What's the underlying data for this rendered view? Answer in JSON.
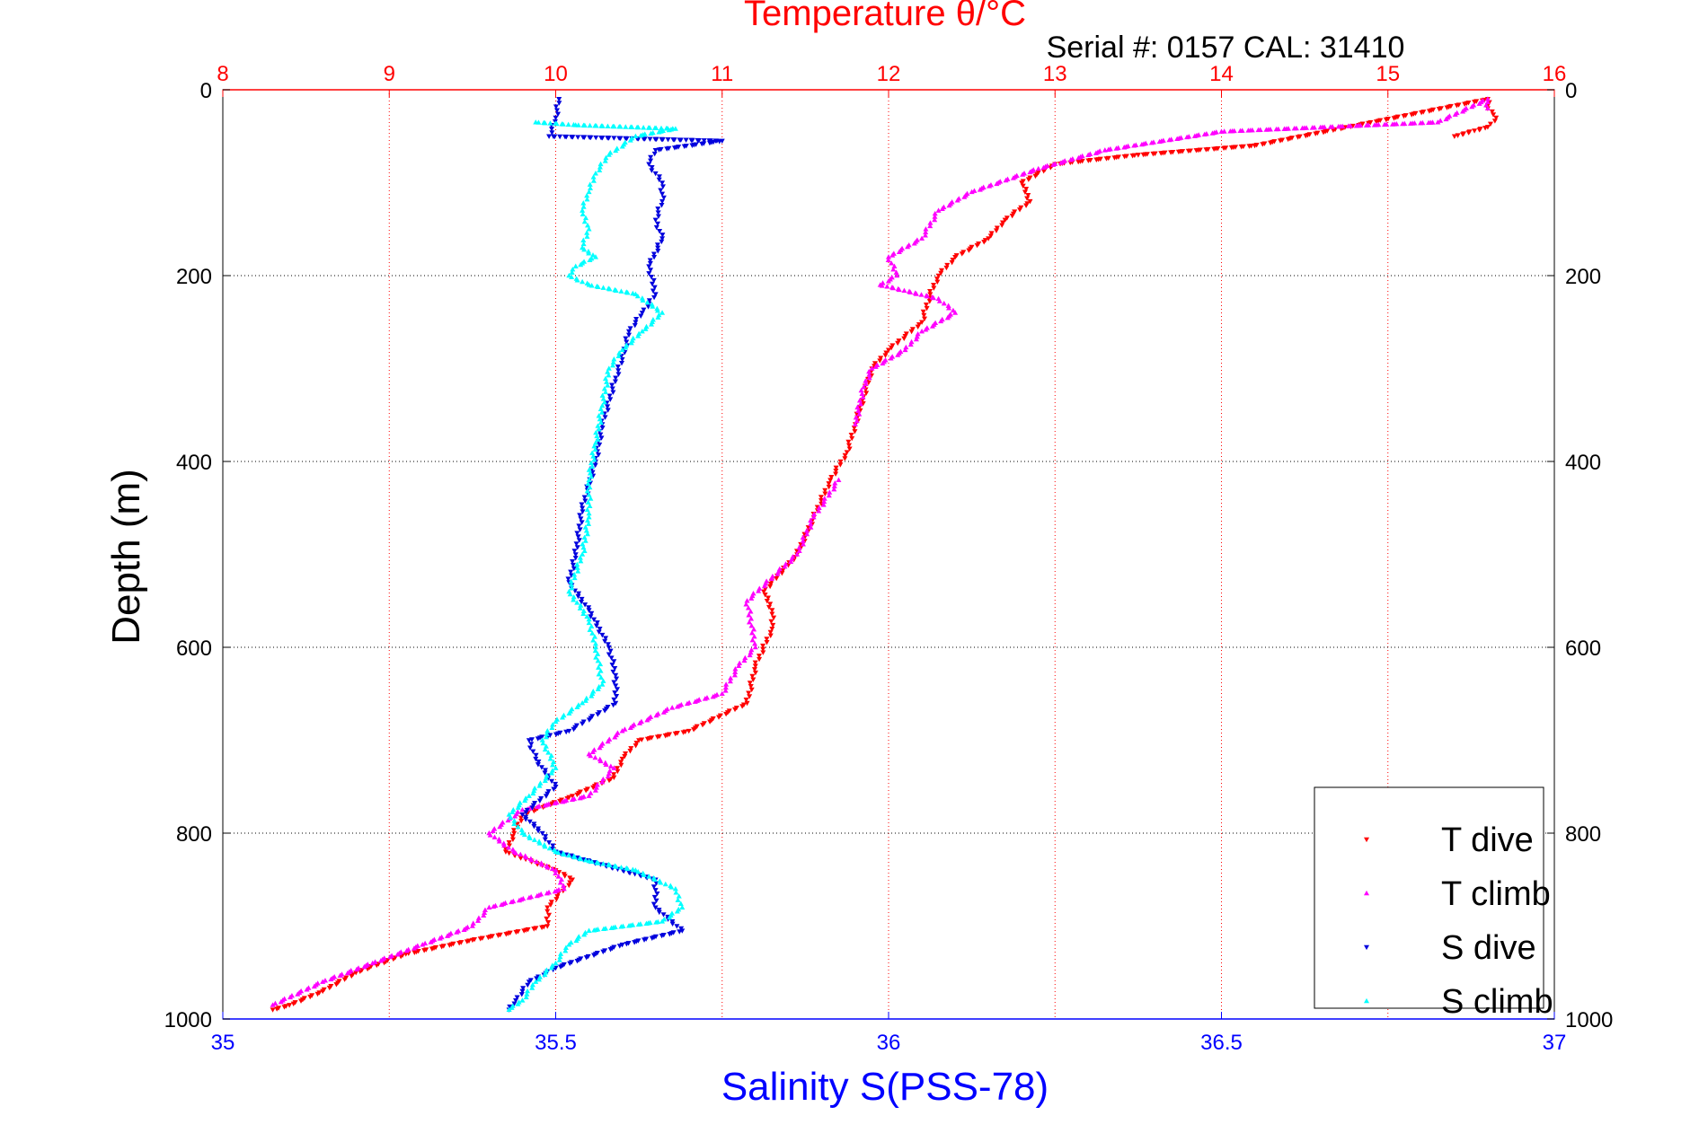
{
  "chart_data": {
    "type": "scatter",
    "title": "Temperature θ/°C",
    "subtitle": "Serial #: 0157  CAL: 31410",
    "xlabel": "Salinity S(PSS-78)",
    "ylabel": "Depth (m)",
    "x_top": {
      "label": "Temperature θ/°C",
      "range": [
        8,
        16
      ],
      "ticks": [
        "8",
        "9",
        "10",
        "11",
        "12",
        "13",
        "14",
        "15",
        "16"
      ],
      "color": "#ff0000"
    },
    "x_bottom": {
      "label": "Salinity S(PSS-78)",
      "range": [
        35,
        37
      ],
      "ticks": [
        "35",
        "35.5",
        "36",
        "36.5",
        "37"
      ],
      "color": "#0000ff"
    },
    "y": {
      "range": [
        0,
        1000
      ],
      "reversed": true,
      "ticks": [
        "0",
        "200",
        "400",
        "600",
        "800",
        "1000"
      ],
      "color": "#000000"
    },
    "grid": true,
    "legend_position": "bottom-right",
    "series": [
      {
        "name": "T dive",
        "axis": "temperature",
        "color": "#ff0000",
        "marker": "triangle-down",
        "points": [
          [
            15.4,
            50
          ],
          [
            15.6,
            40
          ],
          [
            15.65,
            30
          ],
          [
            15.6,
            20
          ],
          [
            15.6,
            10
          ],
          [
            14.2,
            60
          ],
          [
            13.5,
            70
          ],
          [
            13,
            80
          ],
          [
            12.8,
            100
          ],
          [
            12.85,
            120
          ],
          [
            12.7,
            140
          ],
          [
            12.6,
            160
          ],
          [
            12.4,
            180
          ],
          [
            12.3,
            200
          ],
          [
            12.25,
            220
          ],
          [
            12.2,
            250
          ],
          [
            12.0,
            280
          ],
          [
            11.9,
            300
          ],
          [
            11.85,
            330
          ],
          [
            11.8,
            360
          ],
          [
            11.75,
            390
          ],
          [
            11.65,
            420
          ],
          [
            11.55,
            460
          ],
          [
            11.45,
            500
          ],
          [
            11.25,
            540
          ],
          [
            11.3,
            560
          ],
          [
            11.3,
            580
          ],
          [
            11.2,
            620
          ],
          [
            11.15,
            660
          ],
          [
            10.8,
            690
          ],
          [
            10.5,
            700
          ],
          [
            10.4,
            720
          ],
          [
            10.35,
            740
          ],
          [
            10.1,
            760
          ],
          [
            9.8,
            780
          ],
          [
            9.75,
            800
          ],
          [
            9.7,
            820
          ],
          [
            10.0,
            840
          ],
          [
            10.1,
            850
          ],
          [
            9.95,
            880
          ],
          [
            9.95,
            900
          ],
          [
            9.5,
            915
          ],
          [
            9.1,
            930
          ],
          [
            8.8,
            950
          ],
          [
            8.6,
            970
          ],
          [
            8.4,
            985
          ],
          [
            8.3,
            990
          ]
        ]
      },
      {
        "name": "T climb",
        "axis": "temperature",
        "color": "#ff00ff",
        "marker": "triangle-up",
        "points": [
          [
            15.6,
            20
          ],
          [
            15.6,
            10
          ],
          [
            15.3,
            35
          ],
          [
            14.0,
            45
          ],
          [
            13.3,
            65
          ],
          [
            12.9,
            85
          ],
          [
            12.5,
            110
          ],
          [
            12.3,
            130
          ],
          [
            12.2,
            160
          ],
          [
            12.0,
            180
          ],
          [
            12.05,
            200
          ],
          [
            11.95,
            210
          ],
          [
            12.3,
            225
          ],
          [
            12.4,
            240
          ],
          [
            12.2,
            260
          ],
          [
            12.1,
            280
          ],
          [
            11.9,
            300
          ],
          [
            11.85,
            320
          ],
          [
            11.8,
            360
          ],
          [
            11.7,
            420
          ],
          [
            11.55,
            460
          ],
          [
            11.45,
            500
          ],
          [
            11.15,
            550
          ],
          [
            11.2,
            600
          ],
          [
            11.1,
            620
          ],
          [
            11.0,
            650
          ],
          [
            10.7,
            665
          ],
          [
            10.4,
            690
          ],
          [
            10.2,
            715
          ],
          [
            10.35,
            730
          ],
          [
            10.2,
            760
          ],
          [
            9.8,
            775
          ],
          [
            9.6,
            800
          ],
          [
            9.75,
            820
          ],
          [
            10.0,
            840
          ],
          [
            10.05,
            860
          ],
          [
            9.6,
            880
          ],
          [
            9.5,
            900
          ],
          [
            9.2,
            920
          ],
          [
            8.9,
            940
          ],
          [
            8.6,
            960
          ],
          [
            8.3,
            985
          ]
        ]
      },
      {
        "name": "S dive",
        "axis": "salinity",
        "color": "#0000dd",
        "marker": "triangle-down",
        "points": [
          [
            35.505,
            10
          ],
          [
            35.5,
            30
          ],
          [
            35.49,
            50
          ],
          [
            35.75,
            55
          ],
          [
            35.65,
            65
          ],
          [
            35.64,
            80
          ],
          [
            35.66,
            100
          ],
          [
            35.66,
            120
          ],
          [
            35.65,
            140
          ],
          [
            35.66,
            160
          ],
          [
            35.64,
            190
          ],
          [
            35.65,
            220
          ],
          [
            35.63,
            240
          ],
          [
            35.61,
            260
          ],
          [
            35.6,
            290
          ],
          [
            35.59,
            310
          ],
          [
            35.57,
            360
          ],
          [
            35.56,
            400
          ],
          [
            35.54,
            450
          ],
          [
            35.53,
            500
          ],
          [
            35.52,
            530
          ],
          [
            35.55,
            560
          ],
          [
            35.58,
            600
          ],
          [
            35.59,
            630
          ],
          [
            35.59,
            660
          ],
          [
            35.52,
            690
          ],
          [
            35.46,
            700
          ],
          [
            35.47,
            720
          ],
          [
            35.5,
            750
          ],
          [
            35.45,
            780
          ],
          [
            35.48,
            800
          ],
          [
            35.5,
            820
          ],
          [
            35.65,
            850
          ],
          [
            35.65,
            880
          ],
          [
            35.69,
            905
          ],
          [
            35.6,
            920
          ],
          [
            35.5,
            945
          ],
          [
            35.46,
            960
          ],
          [
            35.44,
            980
          ],
          [
            35.43,
            990
          ]
        ]
      },
      {
        "name": "S climb",
        "axis": "salinity",
        "color": "#00ffff",
        "marker": "triangle-up",
        "points": [
          [
            35.47,
            35
          ],
          [
            35.53,
            38
          ],
          [
            35.68,
            42
          ],
          [
            35.62,
            50
          ],
          [
            35.58,
            70
          ],
          [
            35.56,
            90
          ],
          [
            35.55,
            110
          ],
          [
            35.54,
            130
          ],
          [
            35.55,
            150
          ],
          [
            35.54,
            170
          ],
          [
            35.56,
            180
          ],
          [
            35.53,
            190
          ],
          [
            35.52,
            200
          ],
          [
            35.55,
            210
          ],
          [
            35.62,
            220
          ],
          [
            35.66,
            240
          ],
          [
            35.63,
            260
          ],
          [
            35.6,
            280
          ],
          [
            35.58,
            300
          ],
          [
            35.57,
            340
          ],
          [
            35.56,
            380
          ],
          [
            35.55,
            420
          ],
          [
            35.55,
            460
          ],
          [
            35.54,
            500
          ],
          [
            35.52,
            540
          ],
          [
            35.55,
            570
          ],
          [
            35.56,
            600
          ],
          [
            35.57,
            640
          ],
          [
            35.54,
            660
          ],
          [
            35.5,
            680
          ],
          [
            35.48,
            700
          ],
          [
            35.5,
            730
          ],
          [
            35.46,
            760
          ],
          [
            35.43,
            780
          ],
          [
            35.45,
            800
          ],
          [
            35.5,
            820
          ],
          [
            35.55,
            830
          ],
          [
            35.62,
            840
          ],
          [
            35.68,
            860
          ],
          [
            35.69,
            880
          ],
          [
            35.66,
            895
          ],
          [
            35.55,
            905
          ],
          [
            35.52,
            920
          ],
          [
            35.5,
            940
          ],
          [
            35.47,
            960
          ],
          [
            35.45,
            980
          ],
          [
            35.43,
            990
          ]
        ]
      }
    ]
  }
}
